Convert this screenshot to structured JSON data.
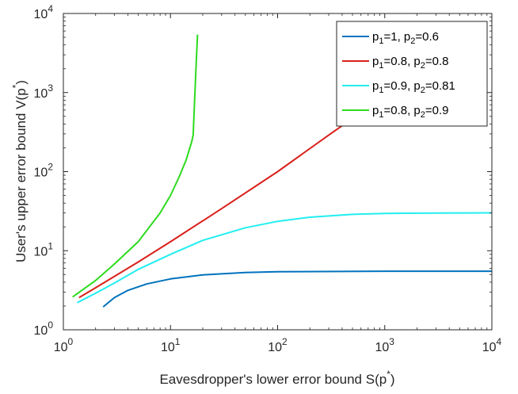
{
  "chart_data": {
    "type": "line",
    "xscale": "log",
    "yscale": "log",
    "xlim": [
      1,
      10000
    ],
    "ylim": [
      1,
      10000
    ],
    "xticks": [
      {
        "base": "10",
        "exp": "0",
        "value": 1
      },
      {
        "base": "10",
        "exp": "1",
        "value": 10
      },
      {
        "base": "10",
        "exp": "2",
        "value": 100
      },
      {
        "base": "10",
        "exp": "3",
        "value": 1000
      },
      {
        "base": "10",
        "exp": "4",
        "value": 10000
      }
    ],
    "yticks": [
      {
        "base": "10",
        "exp": "0",
        "value": 1
      },
      {
        "base": "10",
        "exp": "1",
        "value": 10
      },
      {
        "base": "10",
        "exp": "2",
        "value": 100
      },
      {
        "base": "10",
        "exp": "3",
        "value": 1000
      },
      {
        "base": "10",
        "exp": "4",
        "value": 10000
      }
    ],
    "xlabel": {
      "text": "Eavesdropper's lower error bound S(p",
      "sup": "*",
      "close": ")"
    },
    "ylabel": {
      "text": "User's upper error bound V(p",
      "sup": "*",
      "close": ")"
    },
    "grid": false,
    "legend_position": "top-right",
    "series": [
      {
        "legend": {
          "p1": "1",
          "p2": "0.6"
        },
        "color": "#0072BD",
        "points": [
          [
            2.35,
            1.95
          ],
          [
            3,
            2.55
          ],
          [
            4,
            3.15
          ],
          [
            6,
            3.8
          ],
          [
            10,
            4.4
          ],
          [
            20,
            4.95
          ],
          [
            50,
            5.3
          ],
          [
            100,
            5.42
          ],
          [
            1000,
            5.5
          ],
          [
            10000,
            5.5
          ]
        ]
      },
      {
        "legend": {
          "p1": "0.8",
          "p2": "0.8"
        },
        "color": "#D9201A",
        "points": [
          [
            1.4,
            2.55
          ],
          [
            2,
            3.4
          ],
          [
            5,
            7.2
          ],
          [
            10,
            13
          ],
          [
            30,
            34
          ],
          [
            100,
            100
          ],
          [
            300,
            290
          ],
          [
            600,
            560
          ]
        ]
      },
      {
        "legend": {
          "p1": "0.9",
          "p2": "0.81"
        },
        "color": "#22EEF0",
        "points": [
          [
            1.35,
            2.2
          ],
          [
            2,
            2.9
          ],
          [
            3,
            3.9
          ],
          [
            5,
            5.8
          ],
          [
            10,
            9
          ],
          [
            20,
            13.5
          ],
          [
            50,
            19.5
          ],
          [
            100,
            23.5
          ],
          [
            200,
            26.5
          ],
          [
            500,
            28.8
          ],
          [
            1000,
            29.6
          ],
          [
            3000,
            30
          ],
          [
            10000,
            30.1
          ]
        ]
      },
      {
        "legend": {
          "p1": "0.8",
          "p2": "0.9"
        },
        "color": "#2DDB1E",
        "points": [
          [
            1.22,
            2.6
          ],
          [
            2,
            4.2
          ],
          [
            3,
            6.8
          ],
          [
            5,
            13
          ],
          [
            8,
            30
          ],
          [
            10,
            50
          ],
          [
            12,
            85
          ],
          [
            14,
            140
          ],
          [
            15.8,
            240
          ],
          [
            16.3,
            290
          ],
          [
            16.8,
            800
          ],
          [
            17.3,
            2000
          ],
          [
            17.9,
            5400
          ]
        ]
      }
    ]
  }
}
